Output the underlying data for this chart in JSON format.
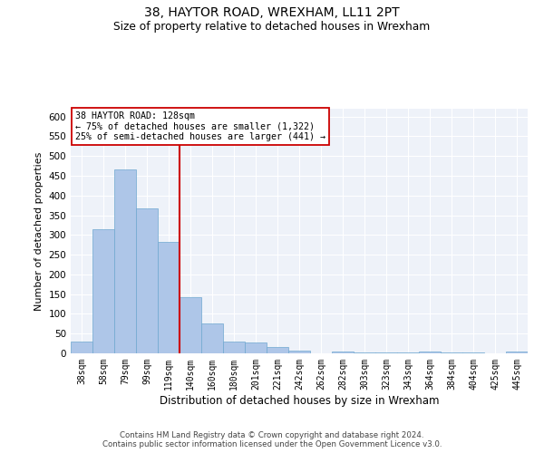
{
  "title1": "38, HAYTOR ROAD, WREXHAM, LL11 2PT",
  "title2": "Size of property relative to detached houses in Wrexham",
  "xlabel": "Distribution of detached houses by size in Wrexham",
  "ylabel": "Number of detached properties",
  "categories": [
    "38sqm",
    "58sqm",
    "79sqm",
    "99sqm",
    "119sqm",
    "140sqm",
    "160sqm",
    "180sqm",
    "201sqm",
    "221sqm",
    "242sqm",
    "262sqm",
    "282sqm",
    "303sqm",
    "323sqm",
    "343sqm",
    "364sqm",
    "384sqm",
    "404sqm",
    "425sqm",
    "445sqm"
  ],
  "values": [
    30,
    315,
    467,
    367,
    283,
    142,
    76,
    31,
    27,
    15,
    8,
    0,
    5,
    2,
    2,
    2,
    5,
    2,
    2,
    0,
    5
  ],
  "bar_color": "#aec6e8",
  "bar_edge_color": "#6fa8d0",
  "annotation_line1": "38 HAYTOR ROAD: 128sqm",
  "annotation_line2": "← 75% of detached houses are smaller (1,322)",
  "annotation_line3": "25% of semi-detached houses are larger (441) →",
  "vline_color": "#cc0000",
  "annotation_box_color": "#ffffff",
  "annotation_box_edge": "#cc0000",
  "footer1": "Contains HM Land Registry data © Crown copyright and database right 2024.",
  "footer2": "Contains public sector information licensed under the Open Government Licence v3.0.",
  "ylim": [
    0,
    620
  ],
  "yticks": [
    0,
    50,
    100,
    150,
    200,
    250,
    300,
    350,
    400,
    450,
    500,
    550,
    600
  ],
  "background_color": "#eef2f9",
  "grid_color": "#ffffff",
  "vline_x_index": 4.5
}
